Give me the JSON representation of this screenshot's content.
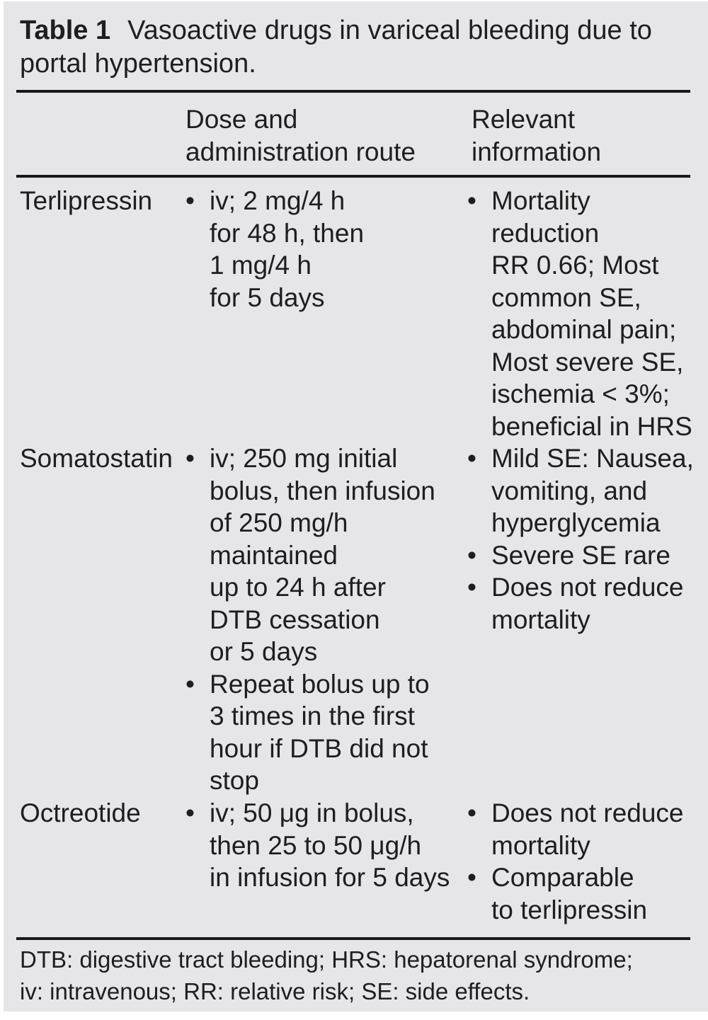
{
  "colors": {
    "panel_bg": "#e6e6e8",
    "text": "#1f1d1e",
    "rule": "#1a181b",
    "page_bg": "#ffffff"
  },
  "bullet_glyph": "•",
  "title": {
    "label": "Table 1",
    "line1": "Vasoactive drugs in variceal bleeding due to",
    "line2": "portal hypertension."
  },
  "header": {
    "dose": [
      "Dose and",
      "administration route"
    ],
    "info": [
      "Relevant",
      "information"
    ]
  },
  "rows": [
    {
      "drug": "Terlipressin",
      "dose": [
        [
          "iv; 2 mg/4 h",
          "for 48 h, then",
          "1 mg/4 h",
          "for 5 days"
        ]
      ],
      "info": [
        [
          "Mortality",
          "reduction",
          "RR 0.66; Most",
          "common SE,",
          "abdominal pain;",
          "Most severe SE,",
          "ischemia < 3%;",
          "beneficial in HRS"
        ]
      ]
    },
    {
      "drug": "Somatostatin",
      "dose": [
        [
          "iv; 250 mg initial",
          "bolus, then infusion",
          "of 250 mg/h",
          "maintained",
          "up to 24 h after",
          "DTB cessation",
          "or 5 days"
        ],
        [
          "Repeat bolus up to",
          "3 times in the first",
          "hour if DTB did not",
          "stop"
        ]
      ],
      "info": [
        [
          "Mild SE: Nausea,",
          "vomiting, and",
          "hyperglycemia"
        ],
        [
          "Severe SE rare"
        ],
        [
          "Does not reduce",
          "mortality"
        ]
      ]
    },
    {
      "drug": "Octreotide",
      "dose": [
        [
          "iv; 50 μg in bolus,",
          "then 25 to 50 μg/h",
          "in infusion for 5 days"
        ]
      ],
      "info": [
        [
          "Does not reduce",
          "mortality"
        ],
        [
          "Comparable",
          "to terlipressin"
        ]
      ]
    }
  ],
  "footnote": [
    "DTB: digestive tract bleeding; HRS: hepatorenal syndrome;",
    "iv: intravenous; RR: relative risk; SE: side effects."
  ]
}
